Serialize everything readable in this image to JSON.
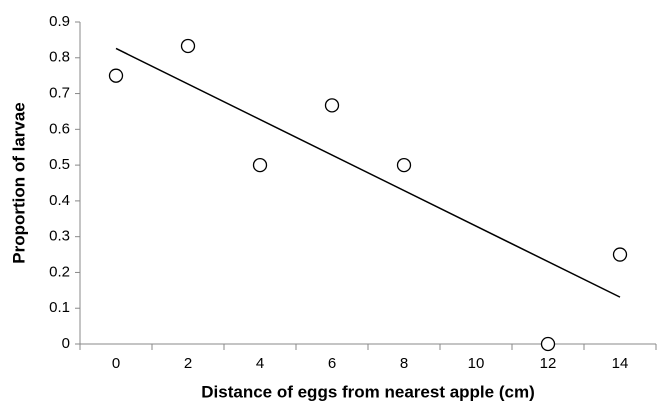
{
  "chart_data": {
    "type": "scatter",
    "x_label": "Distance of eggs from nearest apple (cm)",
    "y_label": "Proportion of larvae",
    "x": [
      0,
      2,
      4,
      6,
      8,
      12,
      14
    ],
    "values": [
      0.75,
      0.833,
      0.5,
      0.667,
      0.5,
      0,
      0.25
    ],
    "trendline": {
      "x": [
        0,
        14
      ],
      "values": [
        0.826,
        0.131
      ]
    },
    "xlim": [
      -1,
      15
    ],
    "xticks": [
      0,
      2,
      4,
      6,
      8,
      10,
      12,
      14
    ],
    "xtick_marks": [
      -1,
      1,
      3,
      5,
      7,
      9,
      11,
      13,
      15
    ],
    "ylim": [
      0,
      0.9
    ],
    "yticks": [
      0,
      0.1,
      0.2,
      0.3,
      0.4,
      0.5,
      0.6,
      0.7,
      0.8,
      0.9
    ],
    "grid": false,
    "color": "#000000"
  }
}
